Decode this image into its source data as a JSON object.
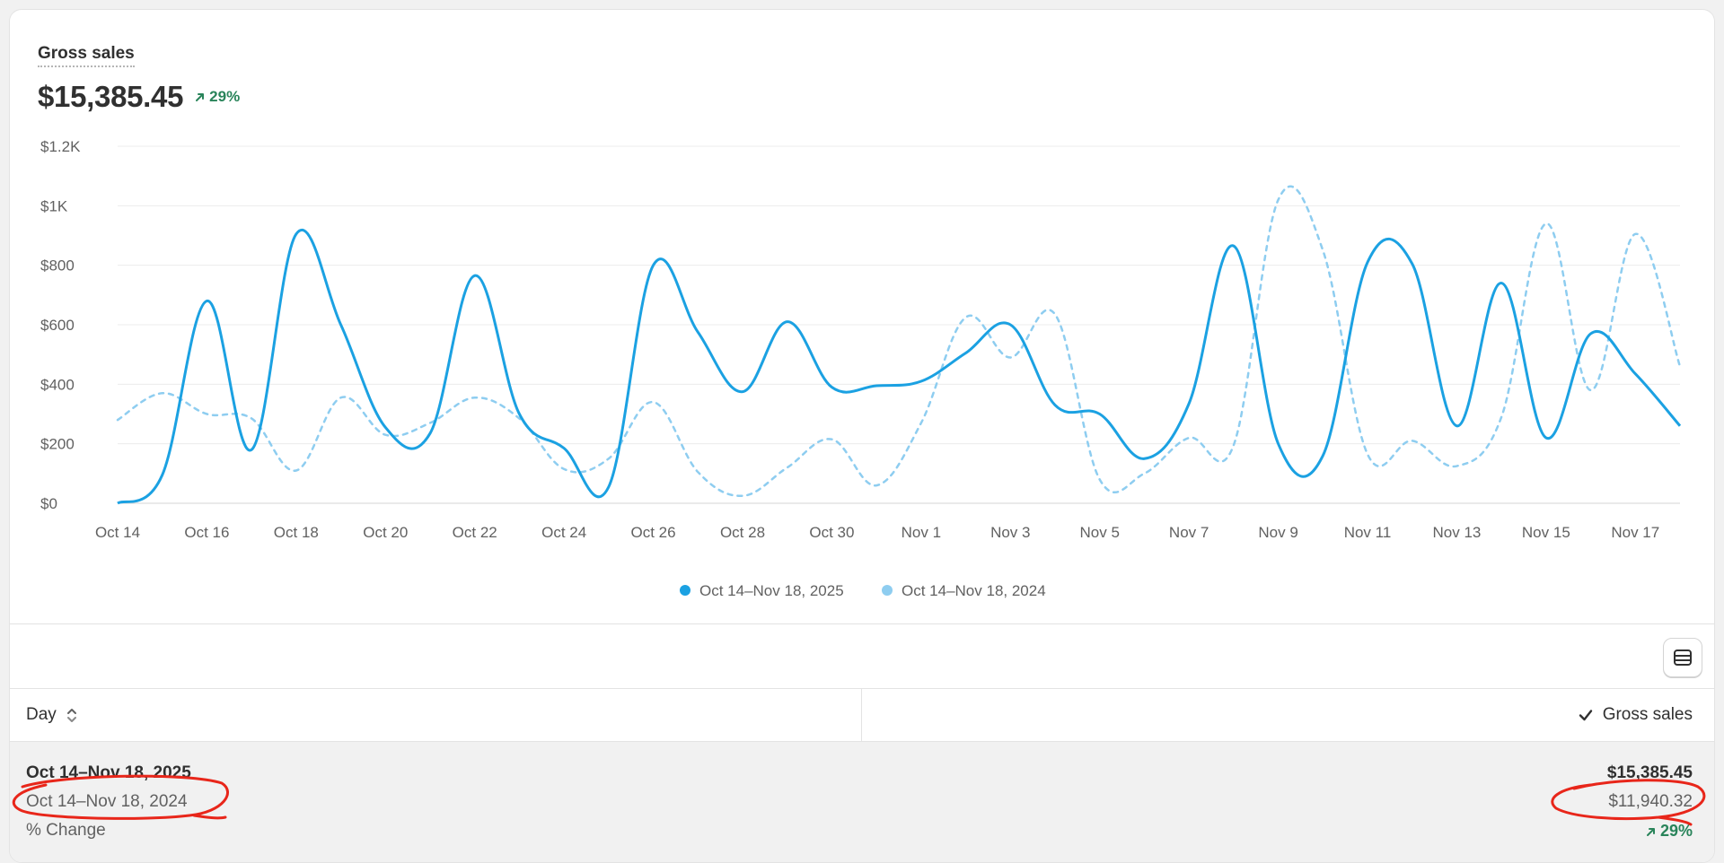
{
  "header": {
    "title": "Gross sales",
    "value": "$15,385.45",
    "change": "29%"
  },
  "colors": {
    "current": "#1ba1e2",
    "previous": "#8ecdf0",
    "positive": "#29845a",
    "annotation": "#e8261a"
  },
  "chart_data": {
    "type": "line",
    "title": "Gross sales",
    "xlabel": "",
    "ylabel": "",
    "ylim": [
      0,
      1200
    ],
    "yticks": [
      0,
      200,
      400,
      600,
      800,
      1000,
      1200
    ],
    "ytick_labels": [
      "$0",
      "$200",
      "$400",
      "$600",
      "$800",
      "$1K",
      "$1.2K"
    ],
    "xtick_labels": [
      "Oct 14",
      "Oct 16",
      "Oct 18",
      "Oct 20",
      "Oct 22",
      "Oct 24",
      "Oct 26",
      "Oct 28",
      "Oct 30",
      "Nov 1",
      "Nov 3",
      "Nov 5",
      "Nov 7",
      "Nov 9",
      "Nov 11",
      "Nov 13",
      "Nov 15",
      "Nov 17"
    ],
    "x": [
      "Oct 14",
      "Oct 15",
      "Oct 16",
      "Oct 17",
      "Oct 18",
      "Oct 19",
      "Oct 20",
      "Oct 21",
      "Oct 22",
      "Oct 23",
      "Oct 24",
      "Oct 25",
      "Oct 26",
      "Oct 27",
      "Oct 28",
      "Oct 29",
      "Oct 30",
      "Oct 31",
      "Nov 1",
      "Nov 2",
      "Nov 3",
      "Nov 4",
      "Nov 5",
      "Nov 6",
      "Nov 7",
      "Nov 8",
      "Nov 9",
      "Nov 10",
      "Nov 11",
      "Nov 12",
      "Nov 13",
      "Nov 14",
      "Nov 15",
      "Nov 16",
      "Nov 17",
      "Nov 18"
    ],
    "grid": true,
    "legend_position": "bottom-center",
    "series": [
      {
        "name": "Oct 14–Nov 18, 2025",
        "style": "solid",
        "values": [
          0,
          95,
          680,
          180,
          905,
          600,
          255,
          235,
          765,
          300,
          185,
          55,
          800,
          575,
          375,
          610,
          390,
          395,
          410,
          505,
          600,
          330,
          300,
          150,
          335,
          865,
          200,
          160,
          810,
          805,
          260,
          740,
          220,
          570,
          435,
          260
        ]
      },
      {
        "name": "Oct 14–Nov 18, 2024",
        "style": "dashed",
        "values": [
          280,
          370,
          300,
          285,
          110,
          355,
          230,
          270,
          355,
          285,
          115,
          150,
          340,
          105,
          25,
          120,
          215,
          60,
          270,
          625,
          490,
          635,
          80,
          100,
          220,
          195,
          1020,
          850,
          165,
          210,
          125,
          290,
          940,
          380,
          905,
          460
        ]
      }
    ]
  },
  "table": {
    "toggle_icon": "table-view-icon",
    "col_day": "Day",
    "col_gross": "Gross sales",
    "rows": [
      {
        "label": "Oct 14–Nov 18, 2025",
        "value": "$15,385.45"
      },
      {
        "label": "Oct 14–Nov 18, 2024",
        "value": "$11,940.32"
      },
      {
        "label": "% Change",
        "value": "29%"
      }
    ]
  }
}
